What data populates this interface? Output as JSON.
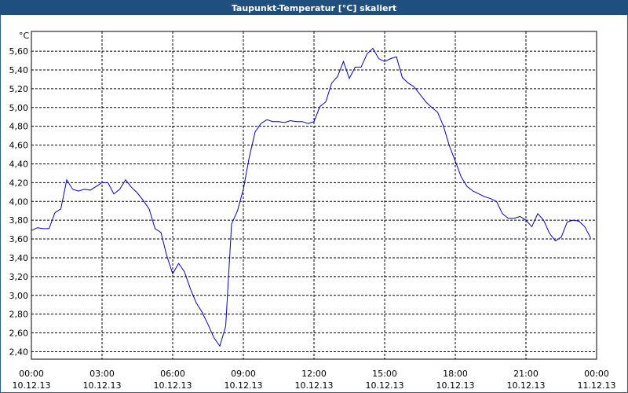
{
  "chart_data": {
    "type": "line",
    "title": "Taupunkt-Temperatur [°C] skaliert",
    "y_label": "°C",
    "xlim": [
      0,
      24
    ],
    "ylim": [
      2.32,
      5.81
    ],
    "xticks": [
      {
        "value": 0,
        "label": "00:00",
        "date": "10.12.13"
      },
      {
        "value": 3,
        "label": "03:00",
        "date": "10.12.13"
      },
      {
        "value": 6,
        "label": "06:00",
        "date": "10.12.13"
      },
      {
        "value": 9,
        "label": "09:00",
        "date": "10.12.13"
      },
      {
        "value": 12,
        "label": "12:00",
        "date": "10.12.13"
      },
      {
        "value": 15,
        "label": "15:00",
        "date": "10.12.13"
      },
      {
        "value": 18,
        "label": "18:00",
        "date": "10.12.13"
      },
      {
        "value": 21,
        "label": "21:00",
        "date": "10.12.13"
      },
      {
        "value": 24,
        "label": "00:00",
        "date": "11.12.13"
      }
    ],
    "yticks": [
      {
        "value": 2.4,
        "label": "2,40"
      },
      {
        "value": 2.6,
        "label": "2,60"
      },
      {
        "value": 2.8,
        "label": "2,80"
      },
      {
        "value": 3.0,
        "label": "3,00"
      },
      {
        "value": 3.2,
        "label": "3,20"
      },
      {
        "value": 3.4,
        "label": "3,40"
      },
      {
        "value": 3.6,
        "label": "3,60"
      },
      {
        "value": 3.8,
        "label": "3,80"
      },
      {
        "value": 4.0,
        "label": "4,00"
      },
      {
        "value": 4.2,
        "label": "4,20"
      },
      {
        "value": 4.4,
        "label": "4,40"
      },
      {
        "value": 4.6,
        "label": "4,60"
      },
      {
        "value": 4.8,
        "label": "4,80"
      },
      {
        "value": 5.0,
        "label": "5,00"
      },
      {
        "value": 5.2,
        "label": "5,20"
      },
      {
        "value": 5.4,
        "label": "5,40"
      },
      {
        "value": 5.6,
        "label": "5,60"
      }
    ],
    "grid": true,
    "x": [
      0,
      0.25,
      0.5,
      0.75,
      1,
      1.25,
      1.5,
      1.75,
      2,
      2.25,
      2.5,
      2.75,
      3,
      3.25,
      3.5,
      3.75,
      4,
      4.25,
      4.5,
      4.75,
      5,
      5.25,
      5.5,
      5.75,
      6,
      6.25,
      6.5,
      6.75,
      7,
      7.25,
      7.5,
      7.75,
      8,
      8.25,
      8.5,
      8.75,
      9,
      9.25,
      9.5,
      9.75,
      10,
      10.25,
      10.5,
      10.75,
      11,
      11.25,
      11.5,
      11.75,
      12,
      12.25,
      12.5,
      12.75,
      13,
      13.25,
      13.5,
      13.75,
      14,
      14.25,
      14.5,
      14.75,
      15,
      15.25,
      15.5,
      15.75,
      16,
      16.25,
      16.5,
      16.75,
      17,
      17.25,
      17.5,
      17.75,
      18,
      18.25,
      18.5,
      18.75,
      19,
      19.25,
      19.5,
      19.75,
      20,
      20.25,
      20.5,
      20.75,
      21,
      21.25,
      21.5,
      21.75,
      22,
      22.25,
      22.5,
      22.75,
      23,
      23.25,
      23.5,
      23.75
    ],
    "series": [
      {
        "name": "Taupunkt-Temperatur",
        "color": "#0000cc",
        "values": [
          3.69,
          3.72,
          3.71,
          3.71,
          3.88,
          3.92,
          4.23,
          4.13,
          4.11,
          4.13,
          4.12,
          4.16,
          4.2,
          4.2,
          4.08,
          4.13,
          4.23,
          4.15,
          4.09,
          4.01,
          3.92,
          3.71,
          3.67,
          3.42,
          3.23,
          3.34,
          3.25,
          3.07,
          2.92,
          2.82,
          2.69,
          2.55,
          2.46,
          2.67,
          3.76,
          3.9,
          4.13,
          4.47,
          4.74,
          4.83,
          4.87,
          4.85,
          4.85,
          4.84,
          4.86,
          4.85,
          4.85,
          4.83,
          4.85,
          5.01,
          5.06,
          5.26,
          5.33,
          5.49,
          5.31,
          5.43,
          5.43,
          5.57,
          5.63,
          5.52,
          5.49,
          5.52,
          5.54,
          5.32,
          5.26,
          5.22,
          5.14,
          5.06,
          5.0,
          4.95,
          4.8,
          4.59,
          4.43,
          4.26,
          4.16,
          4.11,
          4.08,
          4.05,
          4.03,
          4.0,
          3.87,
          3.82,
          3.82,
          3.84,
          3.8,
          3.73,
          3.87,
          3.8,
          3.66,
          3.58,
          3.62,
          3.78,
          3.8,
          3.79,
          3.73,
          3.61
        ]
      }
    ]
  }
}
